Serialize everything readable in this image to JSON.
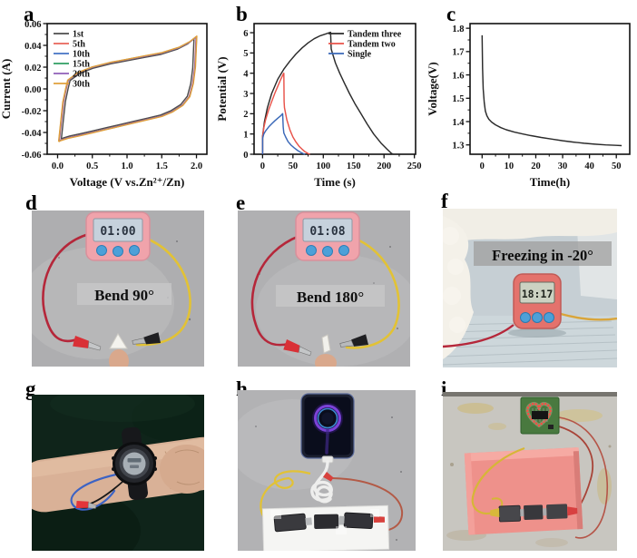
{
  "panels": {
    "a": "a",
    "b": "b",
    "c": "c",
    "d": "d",
    "e": "e",
    "f": "f",
    "g": "g",
    "h": "h",
    "i": "i"
  },
  "colors": {
    "wire-red": "#b5273a",
    "wire-yellow": "#e2c235",
    "timer-pink": "#f0a3ab",
    "timer-coral": "#e4726c",
    "button-blue": "#4da0d8",
    "foam-pink": "#ee918b",
    "led-red": "#ff4b42",
    "pcb-green": "#49793f",
    "phone-ring-purple": "#7b42d8",
    "phone-ring-blue": "#3f8fd8"
  },
  "chart_data": [
    {
      "id": "a",
      "type": "line",
      "title": "",
      "xlabel": "Voltage (V vs.Zn²⁺/Zn)",
      "ylabel": "Current (A)",
      "xlim": [
        -0.15,
        2.15
      ],
      "ylim": [
        -0.06,
        0.06
      ],
      "xticks": [
        0,
        0.5,
        1,
        1.5,
        2
      ],
      "xtick_labels": [
        "0.0",
        "0.5",
        "1.0",
        "1.5",
        "2.0"
      ],
      "xminor": [
        0.25,
        0.75,
        1.25,
        1.75
      ],
      "yticks": [
        0.06,
        0.04,
        0.02,
        0,
        -0.02,
        -0.04,
        -0.06
      ],
      "ytick_labels": [
        "0.06",
        "0.04",
        "0.02",
        "0.00",
        "-0.02",
        "-0.04",
        "-0.06"
      ],
      "yminor": [
        0.05,
        0.03,
        0.01,
        -0.01,
        -0.03,
        -0.05
      ],
      "grid": false,
      "legend_pos": "top-left",
      "loop": [
        [
          0.02,
          -0.048
        ],
        [
          0.05,
          -0.03
        ],
        [
          0.08,
          -0.012
        ],
        [
          0.12,
          0.0
        ],
        [
          0.15,
          0.008
        ],
        [
          0.3,
          0.015
        ],
        [
          0.5,
          0.02
        ],
        [
          0.75,
          0.024
        ],
        [
          1.0,
          0.027
        ],
        [
          1.25,
          0.03
        ],
        [
          1.5,
          0.033
        ],
        [
          1.75,
          0.038
        ],
        [
          1.9,
          0.043
        ],
        [
          2.0,
          0.048
        ],
        [
          1.98,
          0.02
        ],
        [
          1.95,
          0.005
        ],
        [
          1.9,
          -0.007
        ],
        [
          1.8,
          -0.015
        ],
        [
          1.65,
          -0.021
        ],
        [
          1.5,
          -0.025
        ],
        [
          1.3,
          -0.028
        ],
        [
          1.1,
          -0.031
        ],
        [
          0.9,
          -0.034
        ],
        [
          0.7,
          -0.037
        ],
        [
          0.5,
          -0.04
        ],
        [
          0.3,
          -0.043
        ],
        [
          0.15,
          -0.045
        ],
        [
          0.05,
          -0.047
        ],
        [
          0.02,
          -0.048
        ]
      ],
      "series": [
        {
          "name": "1st",
          "color": "#4d4d4d",
          "kx": 0.965,
          "ky": 0.96
        },
        {
          "name": "5th",
          "color": "#e8645a",
          "kx": 0.995,
          "ky": 0.995
        },
        {
          "name": "10th",
          "color": "#4472c4",
          "kx": 1.0,
          "ky": 1.0
        },
        {
          "name": "15th",
          "color": "#2f9e62",
          "kx": 1.002,
          "ky": 1.004
        },
        {
          "name": "20th",
          "color": "#8f5fb8",
          "kx": 0.999,
          "ky": 0.999
        },
        {
          "name": "30th",
          "color": "#e0a03c",
          "kx": 1.005,
          "ky": 1.01
        }
      ]
    },
    {
      "id": "b",
      "type": "line",
      "title": "",
      "xlabel": "Time (s)",
      "ylabel": "Potential (V)",
      "xlim": [
        -14,
        252
      ],
      "ylim": [
        0,
        6.45
      ],
      "xticks": [
        0,
        50,
        100,
        150,
        200,
        250
      ],
      "xtick_labels": [
        "0",
        "50",
        "100",
        "150",
        "200",
        "250"
      ],
      "xminor": [
        25,
        75,
        125,
        175,
        225
      ],
      "yticks": [
        0,
        1,
        2,
        3,
        4,
        5,
        6
      ],
      "ytick_labels": [
        "0",
        "1",
        "2",
        "3",
        "4",
        "5",
        "6"
      ],
      "yminor": [
        0.5,
        1.5,
        2.5,
        3.5,
        4.5,
        5.5
      ],
      "grid": false,
      "legend_pos": "top-right",
      "series": [
        {
          "name": "Tandem three",
          "color": "#2b2b2b",
          "points": [
            [
              0,
              0
            ],
            [
              0,
              0.9
            ],
            [
              3,
              1.6
            ],
            [
              8,
              2.3
            ],
            [
              15,
              3.0
            ],
            [
              25,
              3.7
            ],
            [
              35,
              4.2
            ],
            [
              45,
              4.6
            ],
            [
              55,
              4.95
            ],
            [
              65,
              5.25
            ],
            [
              75,
              5.5
            ],
            [
              85,
              5.7
            ],
            [
              95,
              5.85
            ],
            [
              105,
              5.95
            ],
            [
              112,
              6.02
            ],
            [
              113,
              5.2
            ],
            [
              115,
              5.0
            ],
            [
              120,
              4.5
            ],
            [
              127,
              4.0
            ],
            [
              135,
              3.5
            ],
            [
              143,
              3.0
            ],
            [
              152,
              2.5
            ],
            [
              162,
              2.0
            ],
            [
              172,
              1.5
            ],
            [
              183,
              1.0
            ],
            [
              195,
              0.55
            ],
            [
              205,
              0.25
            ],
            [
              212,
              0.05
            ],
            [
              215,
              0
            ]
          ]
        },
        {
          "name": "Tandem two",
          "color": "#e8534a",
          "points": [
            [
              0,
              0
            ],
            [
              0,
              0.85
            ],
            [
              2,
              1.3
            ],
            [
              5,
              1.7
            ],
            [
              10,
              2.2
            ],
            [
              15,
              2.6
            ],
            [
              20,
              3.0
            ],
            [
              25,
              3.35
            ],
            [
              30,
              3.7
            ],
            [
              34,
              3.95
            ],
            [
              35,
              4.0
            ],
            [
              35.5,
              2.6
            ],
            [
              36,
              2.3
            ],
            [
              40,
              1.7
            ],
            [
              45,
              1.2
            ],
            [
              50,
              0.85
            ],
            [
              55,
              0.6
            ],
            [
              60,
              0.4
            ],
            [
              65,
              0.25
            ],
            [
              70,
              0.12
            ],
            [
              75,
              0.03
            ],
            [
              78,
              0
            ]
          ]
        },
        {
          "name": "Single",
          "color": "#3a68b8",
          "points": [
            [
              0,
              0
            ],
            [
              0,
              0.78
            ],
            [
              2,
              1.0
            ],
            [
              5,
              1.15
            ],
            [
              10,
              1.35
            ],
            [
              15,
              1.5
            ],
            [
              20,
              1.65
            ],
            [
              25,
              1.78
            ],
            [
              30,
              1.9
            ],
            [
              33,
              2.0
            ],
            [
              34,
              1.35
            ],
            [
              35,
              1.05
            ],
            [
              38,
              0.85
            ],
            [
              42,
              0.62
            ],
            [
              47,
              0.45
            ],
            [
              52,
              0.32
            ],
            [
              58,
              0.18
            ],
            [
              63,
              0.09
            ],
            [
              68,
              0.02
            ],
            [
              70,
              0
            ]
          ]
        }
      ]
    },
    {
      "id": "c",
      "type": "line",
      "title": "",
      "xlabel": "Time(h)",
      "ylabel": "Voltage(V)",
      "xlim": [
        -4.5,
        55
      ],
      "ylim": [
        1.26,
        1.82
      ],
      "xticks": [
        0,
        10,
        20,
        30,
        40,
        50
      ],
      "xtick_labels": [
        "0",
        "10",
        "20",
        "30",
        "40",
        "50"
      ],
      "xminor": [
        5,
        15,
        25,
        35,
        45
      ],
      "yticks": [
        1.3,
        1.4,
        1.5,
        1.6,
        1.7,
        1.8
      ],
      "ytick_labels": [
        "1.3",
        "1.4",
        "1.5",
        "1.6",
        "1.7",
        "1.8"
      ],
      "yminor": [
        1.35,
        1.45,
        1.55,
        1.65,
        1.75
      ],
      "grid": false,
      "legend_pos": null,
      "series": [
        {
          "color": "#2b2b2b",
          "points": [
            [
              0,
              1.77
            ],
            [
              0.15,
              1.63
            ],
            [
              0.4,
              1.54
            ],
            [
              0.8,
              1.48
            ],
            [
              1.2,
              1.445
            ],
            [
              1.8,
              1.425
            ],
            [
              2.5,
              1.41
            ],
            [
              3.5,
              1.398
            ],
            [
              5,
              1.386
            ],
            [
              7,
              1.374
            ],
            [
              9,
              1.365
            ],
            [
              12,
              1.355
            ],
            [
              15,
              1.347
            ],
            [
              18,
              1.34
            ],
            [
              22,
              1.332
            ],
            [
              26,
              1.325
            ],
            [
              30,
              1.318
            ],
            [
              34,
              1.312
            ],
            [
              38,
              1.307
            ],
            [
              42,
              1.303
            ],
            [
              46,
              1.3
            ],
            [
              50,
              1.298
            ],
            [
              52,
              1.297
            ]
          ]
        }
      ]
    }
  ],
  "photos": {
    "d": {
      "caption": "Bend 90°",
      "timer_display": "01:00"
    },
    "e": {
      "caption": "Bend 180°",
      "timer_display": "01:08"
    },
    "f": {
      "caption": "Freezing in -20°",
      "timer_display": "18:17"
    }
  }
}
